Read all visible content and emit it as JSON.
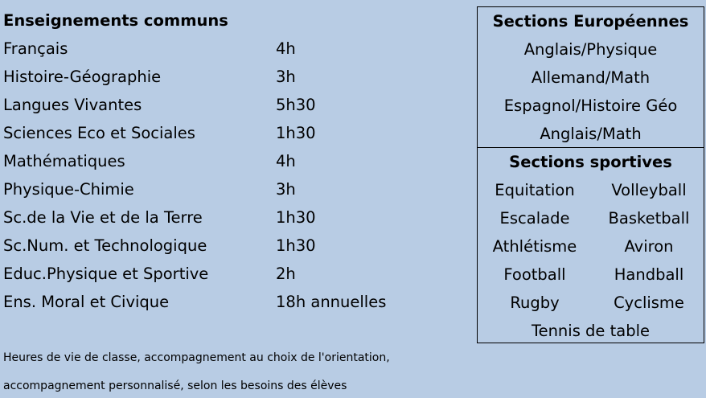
{
  "left": {
    "title": "Enseignements communs",
    "subjects": [
      {
        "name": "Français",
        "hours": "4h"
      },
      {
        "name": "Histoire-Géographie",
        "hours": "3h"
      },
      {
        "name": "Langues Vivantes",
        "hours": "5h30"
      },
      {
        "name": "Sciences Eco et Sociales",
        "hours": "1h30"
      },
      {
        "name": "Mathématiques",
        "hours": "4h"
      },
      {
        "name": "Physique-Chimie",
        "hours": "3h"
      },
      {
        "name": "Sc.de la Vie et de la Terre",
        "hours": "1h30"
      },
      {
        "name": "Sc.Num. et Technologique",
        "hours": "1h30"
      },
      {
        "name": "Educ.Physique et Sportive",
        "hours": "2h"
      },
      {
        "name": "Ens. Moral et Civique",
        "hours": "18h annuelles"
      }
    ],
    "note": [
      "Heures de vie de classe, accompagnement au choix de l'orientation,",
      "accompagnement personnalisé, selon les besoins des élèves"
    ]
  },
  "european": {
    "title": "Sections Européennes",
    "items": [
      "Anglais/Physique",
      "Allemand/Math",
      "Espagnol/Histoire Géo",
      "Anglais/Math"
    ]
  },
  "sports": {
    "title": "Sections sportives",
    "pairs": [
      [
        "Equitation",
        "Volleyball"
      ],
      [
        "Escalade",
        "Basketball"
      ],
      [
        "Athlétisme",
        "Aviron"
      ],
      [
        "Football",
        "Handball"
      ],
      [
        "Rugby",
        "Cyclisme"
      ]
    ],
    "last": "Tennis de table"
  },
  "colors": {
    "background": "#b8cce4",
    "text": "#000000"
  }
}
